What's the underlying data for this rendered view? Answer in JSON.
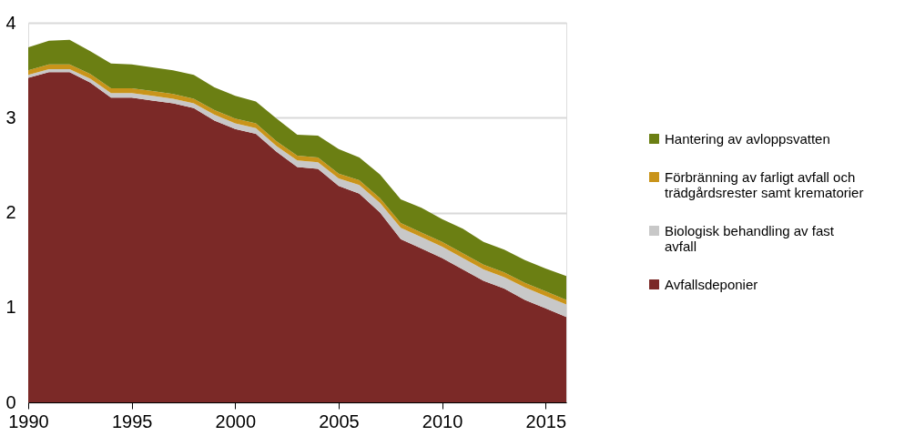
{
  "chart_data": {
    "type": "area",
    "stacked": true,
    "x": [
      1990,
      1991,
      1992,
      1993,
      1994,
      1995,
      1996,
      1997,
      1998,
      1999,
      2000,
      2001,
      2002,
      2003,
      2004,
      2005,
      2006,
      2007,
      2008,
      2009,
      2010,
      2011,
      2012,
      2013,
      2014,
      2015,
      2016
    ],
    "series": [
      {
        "name": "Avfallsdeponier",
        "color": "#7b2927",
        "values": [
          3.42,
          3.48,
          3.48,
          3.37,
          3.21,
          3.21,
          3.18,
          3.15,
          3.1,
          2.97,
          2.88,
          2.83,
          2.64,
          2.48,
          2.46,
          2.28,
          2.2,
          2.0,
          1.72,
          1.62,
          1.52,
          1.4,
          1.28,
          1.2,
          1.08,
          0.99,
          0.9
        ]
      },
      {
        "name": "Biologisk behandling av fast avfall",
        "color": "#c8c8c8",
        "values": [
          0.03,
          0.03,
          0.03,
          0.04,
          0.05,
          0.05,
          0.05,
          0.05,
          0.05,
          0.06,
          0.06,
          0.06,
          0.06,
          0.07,
          0.07,
          0.08,
          0.09,
          0.1,
          0.12,
          0.12,
          0.12,
          0.12,
          0.12,
          0.12,
          0.13,
          0.13,
          0.13
        ]
      },
      {
        "name": "Förbränning av farligt avfall och trädgårdsrester samt krematorier",
        "color": "#c9941a",
        "values": [
          0.05,
          0.05,
          0.05,
          0.05,
          0.05,
          0.05,
          0.05,
          0.05,
          0.05,
          0.05,
          0.05,
          0.05,
          0.05,
          0.05,
          0.05,
          0.05,
          0.05,
          0.05,
          0.05,
          0.05,
          0.05,
          0.05,
          0.05,
          0.05,
          0.05,
          0.05,
          0.05
        ]
      },
      {
        "name": "Hantering av avloppsvatten",
        "color": "#6b7f13",
        "values": [
          0.24,
          0.25,
          0.26,
          0.24,
          0.26,
          0.25,
          0.25,
          0.25,
          0.25,
          0.24,
          0.24,
          0.23,
          0.24,
          0.22,
          0.23,
          0.26,
          0.24,
          0.25,
          0.25,
          0.26,
          0.24,
          0.26,
          0.24,
          0.24,
          0.24,
          0.24,
          0.25
        ]
      }
    ],
    "xlim": [
      1990,
      2016
    ],
    "xticks": [
      1990,
      1995,
      2000,
      2005,
      2010,
      2015
    ],
    "ylim": [
      0,
      4
    ],
    "yticks": [
      0,
      1,
      2,
      3,
      4
    ],
    "grid": "y",
    "legend": "right"
  }
}
